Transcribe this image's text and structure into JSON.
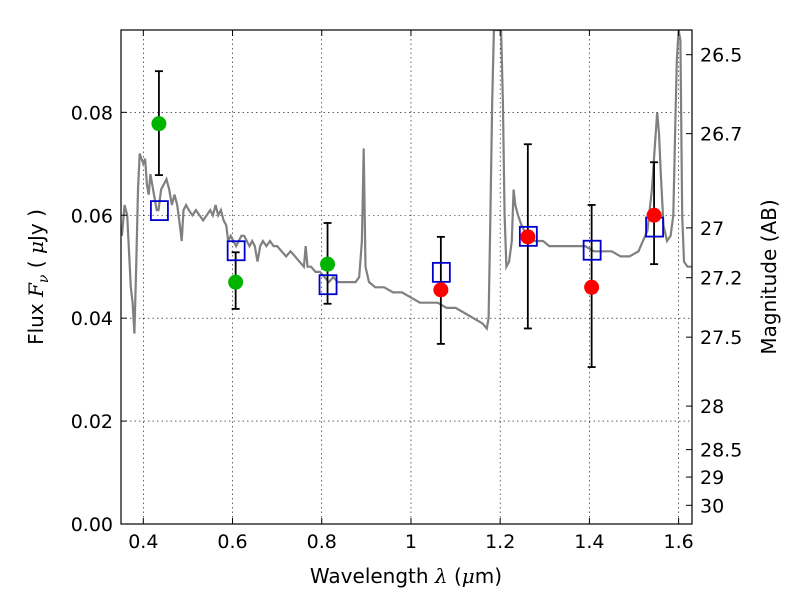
{
  "chart_data": {
    "type": "scatter",
    "xlabel_parts": [
      "Wavelength  ",
      "λ",
      " (",
      "μ",
      "m)"
    ],
    "ylabel_parts": [
      "Flux  ",
      "F",
      "ν",
      "  ( ",
      "μ",
      "Jy )"
    ],
    "y2label": "Magnitude (AB)",
    "xlim": [
      0.35,
      1.63
    ],
    "ylim": [
      0.0,
      0.096
    ],
    "x_ticks": [
      0.4,
      0.6,
      0.8,
      1.0,
      1.2,
      1.4,
      1.6
    ],
    "x_tick_labels": [
      "0.4",
      "0.6",
      "0.8",
      "1",
      "1.2",
      "1.4",
      "1.6"
    ],
    "y_ticks": [
      0.0,
      0.02,
      0.04,
      0.06,
      0.08
    ],
    "y_tick_labels": [
      "0.00",
      "0.02",
      "0.04",
      "0.06",
      "0.08"
    ],
    "y2_ticks": [
      26.5,
      26.7,
      27,
      27.2,
      27.5,
      28,
      28.5,
      29,
      30
    ],
    "y2_tick_labels": [
      "26.5",
      "26.7",
      "27",
      "27.2",
      "27.5",
      "28",
      "28.5",
      "29",
      "30"
    ],
    "grid": true,
    "colors": {
      "spectrum": "#808080",
      "model_box": "#0000cc",
      "optical_points": "#00b400",
      "nir_points": "#ff0000",
      "errorbar": "#000000"
    },
    "spectrum": [
      [
        0.352,
        0.056
      ],
      [
        0.358,
        0.062
      ],
      [
        0.364,
        0.06
      ],
      [
        0.368,
        0.053
      ],
      [
        0.372,
        0.046
      ],
      [
        0.376,
        0.043
      ],
      [
        0.38,
        0.037
      ],
      [
        0.384,
        0.05
      ],
      [
        0.388,
        0.065
      ],
      [
        0.392,
        0.072
      ],
      [
        0.396,
        0.071
      ],
      [
        0.4,
        0.07
      ],
      [
        0.404,
        0.071
      ],
      [
        0.408,
        0.066
      ],
      [
        0.412,
        0.064
      ],
      [
        0.416,
        0.068
      ],
      [
        0.42,
        0.066
      ],
      [
        0.426,
        0.063
      ],
      [
        0.43,
        0.061
      ],
      [
        0.434,
        0.061
      ],
      [
        0.44,
        0.065
      ],
      [
        0.446,
        0.066
      ],
      [
        0.452,
        0.067
      ],
      [
        0.458,
        0.065
      ],
      [
        0.464,
        0.062
      ],
      [
        0.47,
        0.064
      ],
      [
        0.476,
        0.062
      ],
      [
        0.482,
        0.058
      ],
      [
        0.486,
        0.055
      ],
      [
        0.49,
        0.061
      ],
      [
        0.496,
        0.062
      ],
      [
        0.502,
        0.061
      ],
      [
        0.51,
        0.06
      ],
      [
        0.518,
        0.061
      ],
      [
        0.526,
        0.06
      ],
      [
        0.534,
        0.059
      ],
      [
        0.542,
        0.06
      ],
      [
        0.55,
        0.061
      ],
      [
        0.556,
        0.06
      ],
      [
        0.562,
        0.062
      ],
      [
        0.568,
        0.06
      ],
      [
        0.574,
        0.061
      ],
      [
        0.58,
        0.059
      ],
      [
        0.586,
        0.058
      ],
      [
        0.59,
        0.055
      ],
      [
        0.596,
        0.056
      ],
      [
        0.602,
        0.055
      ],
      [
        0.608,
        0.054
      ],
      [
        0.614,
        0.055
      ],
      [
        0.62,
        0.056
      ],
      [
        0.626,
        0.056
      ],
      [
        0.632,
        0.055
      ],
      [
        0.638,
        0.054
      ],
      [
        0.644,
        0.055
      ],
      [
        0.65,
        0.054
      ],
      [
        0.656,
        0.051
      ],
      [
        0.662,
        0.054
      ],
      [
        0.668,
        0.055
      ],
      [
        0.676,
        0.054
      ],
      [
        0.684,
        0.055
      ],
      [
        0.692,
        0.054
      ],
      [
        0.7,
        0.054
      ],
      [
        0.71,
        0.053
      ],
      [
        0.72,
        0.052
      ],
      [
        0.73,
        0.053
      ],
      [
        0.74,
        0.052
      ],
      [
        0.75,
        0.051
      ],
      [
        0.76,
        0.05
      ],
      [
        0.764,
        0.054
      ],
      [
        0.768,
        0.05
      ],
      [
        0.776,
        0.05
      ],
      [
        0.786,
        0.049
      ],
      [
        0.796,
        0.049
      ],
      [
        0.806,
        0.048
      ],
      [
        0.816,
        0.047
      ],
      [
        0.826,
        0.048
      ],
      [
        0.836,
        0.047
      ],
      [
        0.846,
        0.047
      ],
      [
        0.856,
        0.047
      ],
      [
        0.866,
        0.047
      ],
      [
        0.876,
        0.047
      ],
      [
        0.884,
        0.048
      ],
      [
        0.89,
        0.055
      ],
      [
        0.894,
        0.073
      ],
      [
        0.898,
        0.05
      ],
      [
        0.906,
        0.047
      ],
      [
        0.92,
        0.046
      ],
      [
        0.94,
        0.046
      ],
      [
        0.96,
        0.045
      ],
      [
        0.98,
        0.045
      ],
      [
        1.0,
        0.044
      ],
      [
        1.02,
        0.043
      ],
      [
        1.04,
        0.043
      ],
      [
        1.06,
        0.043
      ],
      [
        1.08,
        0.042
      ],
      [
        1.1,
        0.042
      ],
      [
        1.12,
        0.041
      ],
      [
        1.14,
        0.04
      ],
      [
        1.16,
        0.039
      ],
      [
        1.17,
        0.038
      ],
      [
        1.174,
        0.04
      ],
      [
        1.178,
        0.06
      ],
      [
        1.182,
        0.082
      ],
      [
        1.186,
        0.096
      ],
      [
        1.19,
        0.096
      ],
      [
        1.194,
        0.096
      ],
      [
        1.198,
        0.096
      ],
      [
        1.202,
        0.096
      ],
      [
        1.206,
        0.082
      ],
      [
        1.21,
        0.06
      ],
      [
        1.214,
        0.05
      ],
      [
        1.22,
        0.051
      ],
      [
        1.226,
        0.055
      ],
      [
        1.23,
        0.065
      ],
      [
        1.234,
        0.062
      ],
      [
        1.24,
        0.06
      ],
      [
        1.248,
        0.058
      ],
      [
        1.254,
        0.057
      ],
      [
        1.262,
        0.056
      ],
      [
        1.272,
        0.055
      ],
      [
        1.284,
        0.055
      ],
      [
        1.296,
        0.055
      ],
      [
        1.31,
        0.054
      ],
      [
        1.33,
        0.054
      ],
      [
        1.35,
        0.054
      ],
      [
        1.37,
        0.054
      ],
      [
        1.39,
        0.054
      ],
      [
        1.41,
        0.053
      ],
      [
        1.43,
        0.053
      ],
      [
        1.45,
        0.053
      ],
      [
        1.47,
        0.052
      ],
      [
        1.49,
        0.052
      ],
      [
        1.51,
        0.053
      ],
      [
        1.52,
        0.055
      ],
      [
        1.53,
        0.057
      ],
      [
        1.54,
        0.065
      ],
      [
        1.548,
        0.075
      ],
      [
        1.552,
        0.08
      ],
      [
        1.556,
        0.076
      ],
      [
        1.56,
        0.068
      ],
      [
        1.566,
        0.058
      ],
      [
        1.574,
        0.055
      ],
      [
        1.582,
        0.056
      ],
      [
        1.588,
        0.06
      ],
      [
        1.592,
        0.075
      ],
      [
        1.596,
        0.09
      ],
      [
        1.6,
        0.096
      ],
      [
        1.604,
        0.094
      ],
      [
        1.608,
        0.06
      ],
      [
        1.612,
        0.051
      ],
      [
        1.62,
        0.05
      ],
      [
        1.63,
        0.05
      ]
    ],
    "model_boxes": [
      {
        "x": 0.435,
        "y": 0.061
      },
      {
        "x": 0.607,
        "y": 0.0532
      },
      {
        "x": 0.813,
        "y": 0.0466
      },
      {
        "x": 1.067,
        "y": 0.049
      },
      {
        "x": 1.262,
        "y": 0.056
      },
      {
        "x": 1.405,
        "y": 0.0533
      },
      {
        "x": 1.545,
        "y": 0.0578
      }
    ],
    "observations": [
      {
        "x": 0.435,
        "y": 0.0778,
        "err_low": 0.0678,
        "err_high": 0.088,
        "band": "optical"
      },
      {
        "x": 0.607,
        "y": 0.047,
        "err_low": 0.0418,
        "err_high": 0.0528,
        "band": "optical"
      },
      {
        "x": 0.813,
        "y": 0.0505,
        "err_low": 0.0428,
        "err_high": 0.0585,
        "band": "optical"
      },
      {
        "x": 1.067,
        "y": 0.0455,
        "err_low": 0.035,
        "err_high": 0.0558,
        "band": "nir"
      },
      {
        "x": 1.262,
        "y": 0.0558,
        "err_low": 0.038,
        "err_high": 0.0738,
        "band": "nir"
      },
      {
        "x": 1.405,
        "y": 0.046,
        "err_low": 0.0305,
        "err_high": 0.062,
        "band": "nir"
      },
      {
        "x": 1.545,
        "y": 0.06,
        "err_low": 0.0505,
        "err_high": 0.0703,
        "band": "nir"
      }
    ]
  }
}
